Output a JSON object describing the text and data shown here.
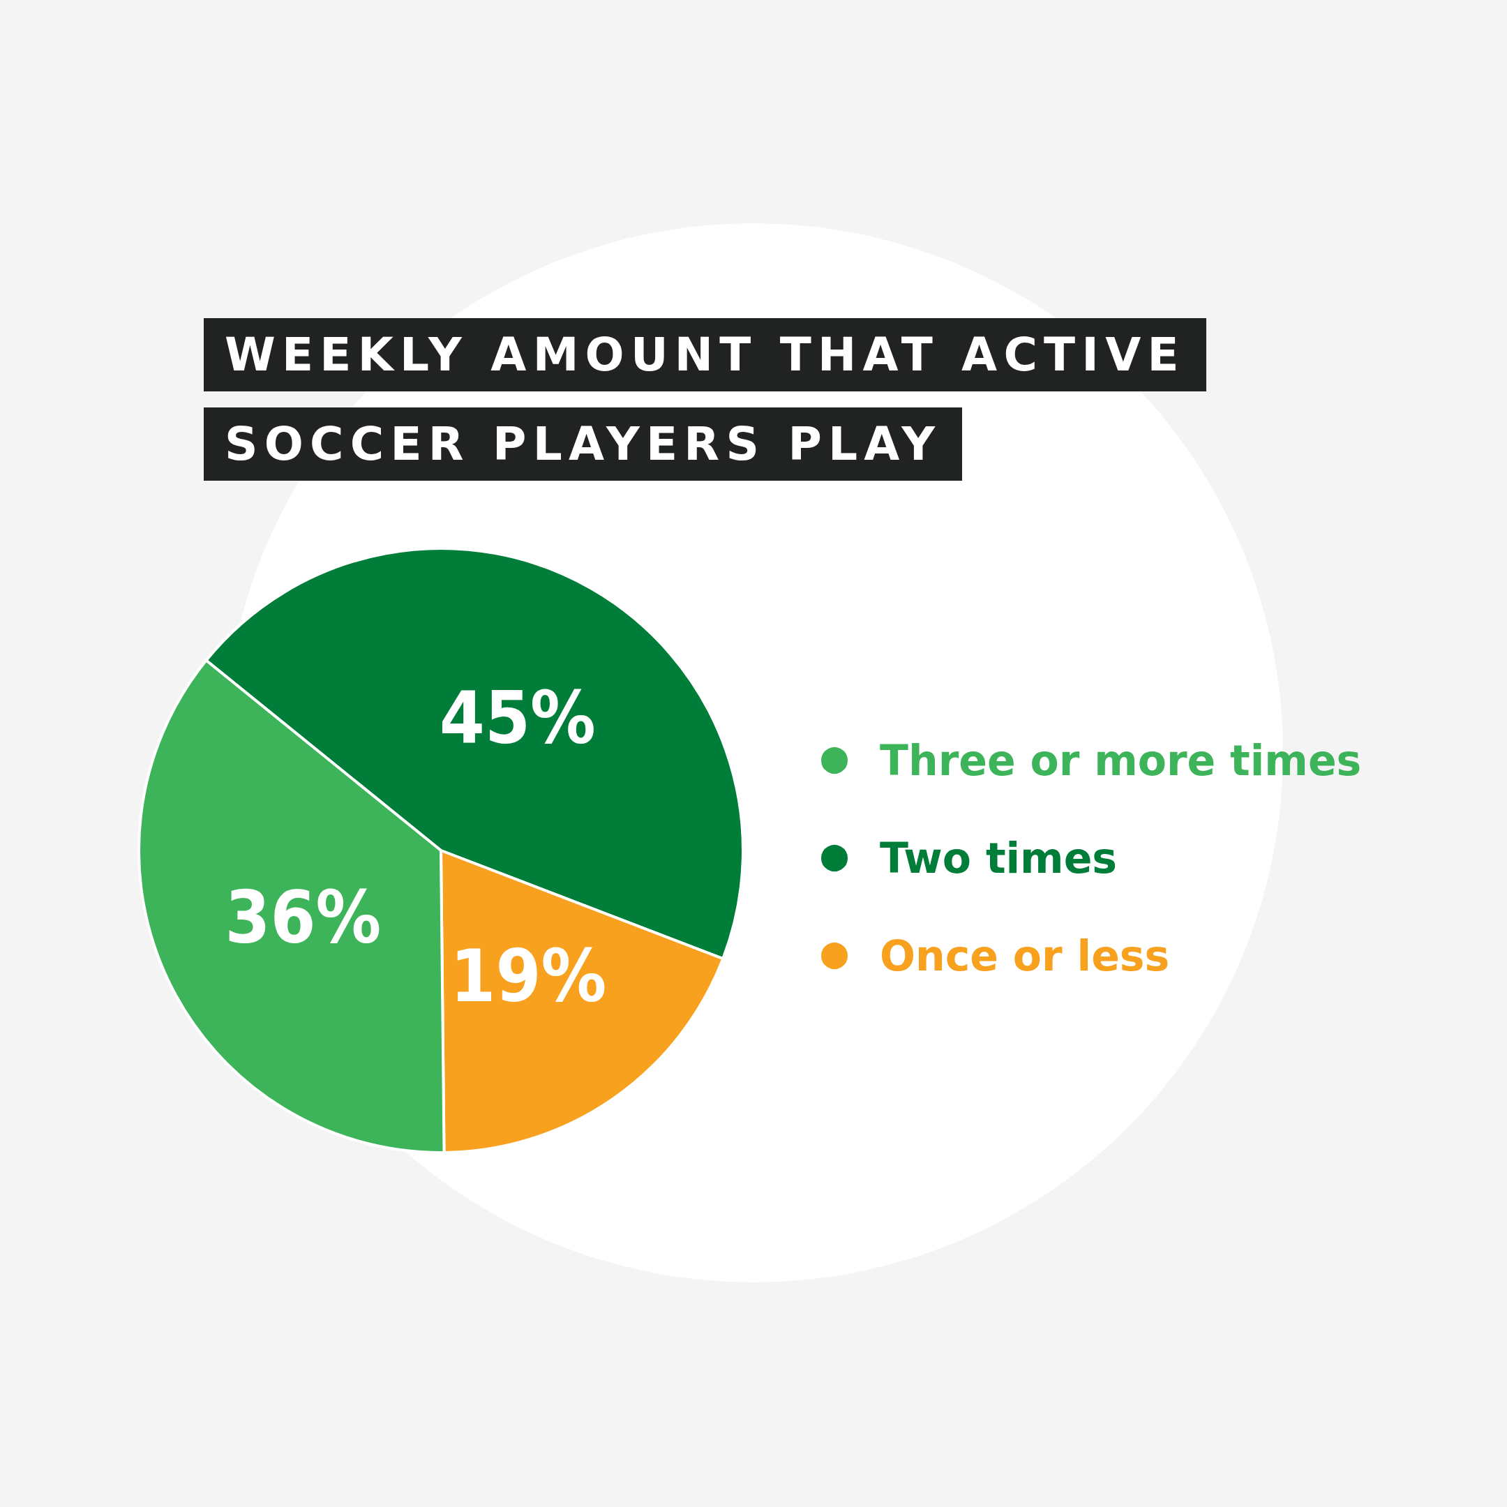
{
  "chart_data": {
    "type": "pie",
    "title": "WEEKLY AMOUNT THAT ACTIVE SOCCER PLAYERS PLAY",
    "categories": [
      "Three or more times",
      "Two times",
      "Once or less"
    ],
    "values": [
      36,
      45,
      19
    ],
    "colors": [
      "#3db45a",
      "#007d39",
      "#f7a11e"
    ],
    "value_labels": [
      "36%",
      "45%",
      "19%"
    ],
    "legend": "right"
  }
}
